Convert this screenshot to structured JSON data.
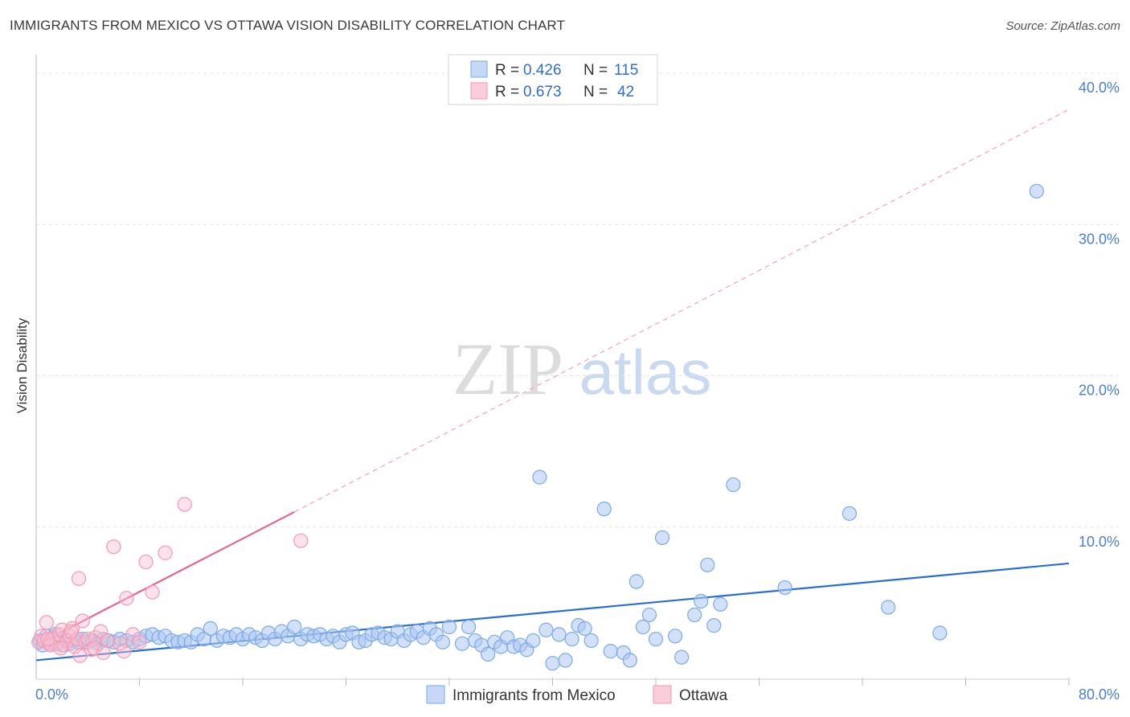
{
  "title": "IMMIGRANTS FROM MEXICO VS OTTAWA VISION DISABILITY CORRELATION CHART",
  "source": "Source: ZipAtlas.com",
  "watermark": {
    "zip": "ZIP",
    "atlas": "atlas"
  },
  "chart_data": {
    "type": "scatter",
    "xlabel": "",
    "ylabel": "Vision Disability",
    "xlim": [
      0,
      80
    ],
    "ylim": [
      0,
      40
    ],
    "x_tick_labels": [
      {
        "value": 0,
        "label": "0.0%"
      },
      {
        "value": 80,
        "label": "80.0%"
      }
    ],
    "y_tick_labels": [
      {
        "value": 10,
        "label": "10.0%"
      },
      {
        "value": 20,
        "label": "20.0%"
      },
      {
        "value": 30,
        "label": "30.0%"
      },
      {
        "value": 40,
        "label": "40.0%"
      }
    ],
    "legend": {
      "rows": [
        {
          "r_label": "R =",
          "r_value": "0.426",
          "n_label": "N =",
          "n_value": "115"
        },
        {
          "r_label": "R =",
          "r_value": "0.673",
          "n_label": "N =",
          "n_value": "42"
        }
      ]
    },
    "series": [
      {
        "name": "Immigrants from Mexico",
        "color": "#7aaae8",
        "trend": {
          "x": [
            0,
            80
          ],
          "y": [
            1.2,
            7.6
          ],
          "color": "#2a6fd0"
        },
        "points": [
          [
            0.3,
            2.5
          ],
          [
            0.5,
            2.2
          ],
          [
            0.8,
            2.8
          ],
          [
            1.0,
            2.4
          ],
          [
            1.2,
            2.3
          ],
          [
            1.5,
            2.6
          ],
          [
            1.8,
            2.4
          ],
          [
            2.0,
            2.2
          ],
          [
            2.3,
            2.5
          ],
          [
            2.6,
            2.3
          ],
          [
            3.0,
            2.5
          ],
          [
            3.3,
            2.4
          ],
          [
            3.6,
            2.6
          ],
          [
            4.0,
            2.4
          ],
          [
            4.4,
            2.5
          ],
          [
            4.8,
            2.3
          ],
          [
            5.2,
            2.6
          ],
          [
            5.6,
            2.5
          ],
          [
            6.0,
            2.4
          ],
          [
            6.5,
            2.6
          ],
          [
            7.0,
            2.5
          ],
          [
            7.5,
            2.4
          ],
          [
            8.0,
            2.6
          ],
          [
            8.5,
            2.8
          ],
          [
            9.0,
            2.9
          ],
          [
            9.5,
            2.7
          ],
          [
            10.0,
            2.8
          ],
          [
            10.5,
            2.5
          ],
          [
            11.0,
            2.4
          ],
          [
            11.5,
            2.5
          ],
          [
            12.0,
            2.4
          ],
          [
            12.5,
            2.9
          ],
          [
            13.0,
            2.6
          ],
          [
            13.5,
            3.3
          ],
          [
            14.0,
            2.5
          ],
          [
            14.5,
            2.8
          ],
          [
            15.0,
            2.7
          ],
          [
            15.5,
            2.9
          ],
          [
            16.0,
            2.6
          ],
          [
            16.5,
            2.9
          ],
          [
            17.0,
            2.7
          ],
          [
            17.5,
            2.5
          ],
          [
            18.0,
            3.0
          ],
          [
            18.5,
            2.6
          ],
          [
            19.0,
            3.1
          ],
          [
            19.5,
            2.8
          ],
          [
            20.0,
            3.4
          ],
          [
            20.5,
            2.6
          ],
          [
            21.0,
            2.9
          ],
          [
            21.5,
            2.8
          ],
          [
            22.0,
            2.9
          ],
          [
            22.5,
            2.6
          ],
          [
            23.0,
            2.8
          ],
          [
            23.5,
            2.4
          ],
          [
            24.0,
            2.9
          ],
          [
            24.5,
            3.0
          ],
          [
            25.0,
            2.4
          ],
          [
            25.5,
            2.5
          ],
          [
            26.0,
            2.9
          ],
          [
            26.5,
            3.0
          ],
          [
            27.0,
            2.7
          ],
          [
            27.5,
            2.6
          ],
          [
            28.0,
            3.1
          ],
          [
            28.5,
            2.5
          ],
          [
            29.0,
            2.9
          ],
          [
            29.5,
            3.1
          ],
          [
            30.0,
            2.7
          ],
          [
            30.5,
            3.3
          ],
          [
            31.0,
            2.9
          ],
          [
            31.5,
            2.4
          ],
          [
            32.0,
            3.4
          ],
          [
            33.0,
            2.3
          ],
          [
            33.5,
            3.4
          ],
          [
            34.0,
            2.5
          ],
          [
            34.5,
            2.2
          ],
          [
            35.0,
            1.6
          ],
          [
            35.5,
            2.4
          ],
          [
            36.0,
            2.1
          ],
          [
            36.5,
            2.7
          ],
          [
            37.0,
            2.1
          ],
          [
            37.5,
            2.2
          ],
          [
            38.0,
            1.9
          ],
          [
            38.5,
            2.5
          ],
          [
            39.0,
            13.3
          ],
          [
            39.5,
            3.2
          ],
          [
            40.0,
            1.0
          ],
          [
            40.5,
            2.9
          ],
          [
            41.0,
            1.2
          ],
          [
            41.5,
            2.6
          ],
          [
            42.0,
            3.5
          ],
          [
            42.5,
            3.3
          ],
          [
            43.0,
            2.5
          ],
          [
            44.0,
            11.2
          ],
          [
            44.5,
            1.8
          ],
          [
            45.5,
            1.7
          ],
          [
            46.0,
            1.2
          ],
          [
            46.5,
            6.4
          ],
          [
            47.0,
            3.4
          ],
          [
            47.5,
            4.2
          ],
          [
            48.0,
            2.6
          ],
          [
            48.5,
            9.3
          ],
          [
            49.5,
            2.8
          ],
          [
            50.0,
            1.4
          ],
          [
            51.0,
            4.2
          ],
          [
            51.5,
            5.1
          ],
          [
            52.0,
            7.5
          ],
          [
            52.5,
            3.5
          ],
          [
            53.0,
            4.9
          ],
          [
            54.0,
            12.8
          ],
          [
            58.0,
            6.0
          ],
          [
            63.0,
            10.9
          ],
          [
            66.0,
            4.7
          ],
          [
            70.0,
            3.0
          ],
          [
            77.5,
            32.2
          ],
          [
            1.5,
            2.9
          ]
        ]
      },
      {
        "name": "Ottawa",
        "color": "#f19ab4",
        "trend": {
          "x": [
            0,
            20
          ],
          "y": [
            2.2,
            11.0
          ],
          "color": "#e36690"
        },
        "trend_extension": {
          "x": [
            20,
            80
          ],
          "y": [
            11.0,
            37.6
          ]
        },
        "points": [
          [
            0.2,
            2.4
          ],
          [
            0.4,
            2.8
          ],
          [
            0.6,
            2.5
          ],
          [
            0.8,
            3.7
          ],
          [
            1.0,
            2.3
          ],
          [
            1.2,
            2.6
          ],
          [
            1.4,
            2.7
          ],
          [
            1.6,
            2.3
          ],
          [
            1.8,
            2.9
          ],
          [
            2.0,
            3.2
          ],
          [
            2.2,
            2.2
          ],
          [
            2.4,
            2.5
          ],
          [
            2.6,
            2.8
          ],
          [
            2.8,
            3.3
          ],
          [
            3.0,
            2.1
          ],
          [
            3.2,
            2.6
          ],
          [
            3.4,
            1.5
          ],
          [
            3.6,
            3.8
          ],
          [
            3.8,
            2.4
          ],
          [
            4.0,
            2.6
          ],
          [
            4.3,
            1.9
          ],
          [
            4.6,
            2.7
          ],
          [
            5.0,
            3.1
          ],
          [
            5.5,
            2.5
          ],
          [
            6.0,
            8.7
          ],
          [
            6.5,
            2.3
          ],
          [
            7.0,
            5.3
          ],
          [
            7.5,
            2.9
          ],
          [
            8.0,
            2.4
          ],
          [
            8.5,
            7.7
          ],
          [
            9.0,
            5.7
          ],
          [
            10.0,
            8.3
          ],
          [
            11.5,
            11.5
          ],
          [
            1.1,
            2.2
          ],
          [
            1.9,
            2.0
          ],
          [
            2.7,
            3.1
          ],
          [
            4.5,
            2.0
          ],
          [
            5.2,
            1.7
          ],
          [
            6.8,
            1.8
          ],
          [
            3.3,
            6.6
          ],
          [
            20.5,
            9.1
          ],
          [
            0.9,
            2.6
          ]
        ]
      }
    ]
  }
}
